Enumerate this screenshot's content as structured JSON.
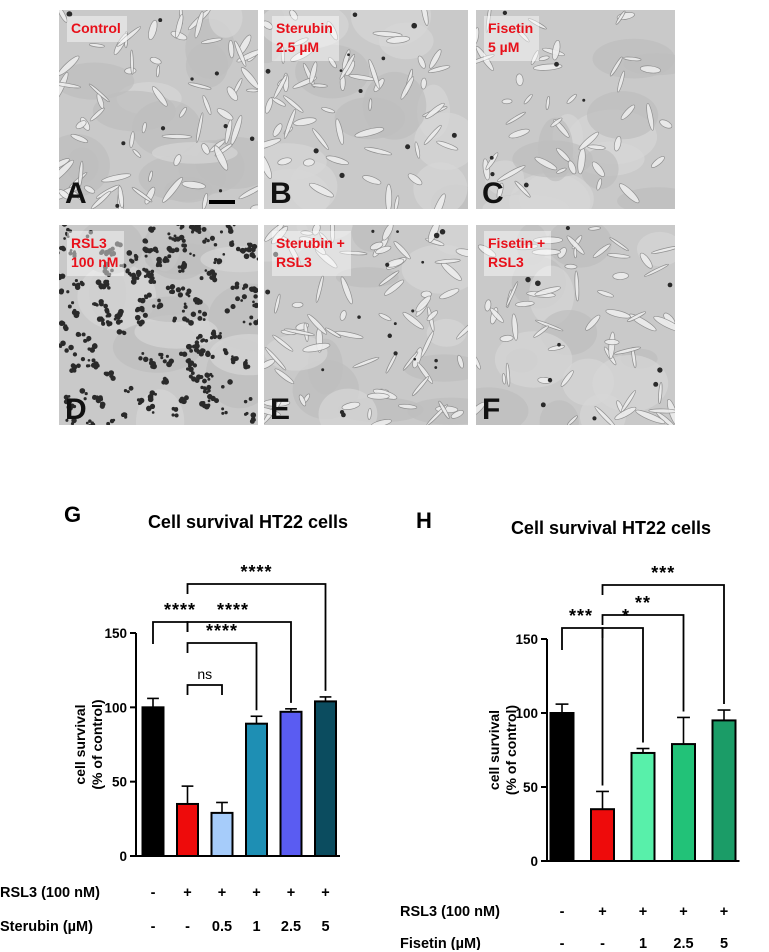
{
  "panels": [
    {
      "id": "A",
      "label": "Control",
      "letter": "A",
      "density": 0.55,
      "dead": 0.06,
      "seed": 11
    },
    {
      "id": "B",
      "label": "Sterubin\n2.5 µM",
      "letter": "B",
      "density": 0.45,
      "dead": 0.07,
      "seed": 23
    },
    {
      "id": "C",
      "label": "Fisetin\n5 µM",
      "letter": "C",
      "density": 0.35,
      "dead": 0.04,
      "seed": 37
    },
    {
      "id": "D",
      "label": "RSL3\n100 nM",
      "letter": "D",
      "density": 0.0,
      "dead": 1.0,
      "seed": 51
    },
    {
      "id": "E",
      "label": "Sterubin +\nRSL3",
      "letter": "E",
      "density": 0.6,
      "dead": 0.12,
      "seed": 67
    },
    {
      "id": "F",
      "label": "Fisetin +\nRSL3",
      "letter": "F",
      "density": 0.45,
      "dead": 0.06,
      "seed": 83
    }
  ],
  "chart_data": [
    {
      "letter": "G",
      "type": "bar",
      "title": "Cell survival HT22 cells",
      "ylabel_line1": "cell survival",
      "ylabel_line2": "(% of control)",
      "ylim": [
        0,
        150
      ],
      "yticks": [
        0,
        50,
        100,
        150
      ],
      "values": [
        100,
        35,
        29,
        89,
        97,
        104
      ],
      "errors": [
        6,
        12,
        7,
        5,
        2,
        3
      ],
      "colors": [
        "#000000",
        "#ee0b0b",
        "#a6ccfa",
        "#1e8fb4",
        "#5a5cf2",
        "#0b4c5f"
      ],
      "row_labels": [
        "RSL3 (100 nM)",
        "Sterubin (µM)"
      ],
      "row1": [
        "-",
        "+",
        "+",
        "+",
        "+",
        "+"
      ],
      "row2": [
        "-",
        "-",
        "0.5",
        "1",
        "2.5",
        "5"
      ],
      "comparisons": [
        {
          "from": 0,
          "to": 1,
          "label": "****"
        },
        {
          "from": 1,
          "to": 2,
          "label": "ns"
        },
        {
          "from": 1,
          "to": 3,
          "label": "****"
        },
        {
          "from": 1,
          "to": 4,
          "label": "****"
        },
        {
          "from": 1,
          "to": 5,
          "label": "****"
        }
      ]
    },
    {
      "letter": "H",
      "type": "bar",
      "title": "Cell survival HT22 cells",
      "ylabel_line1": "cell survival",
      "ylabel_line2": "(% of control)",
      "ylim": [
        0,
        150
      ],
      "yticks": [
        0,
        50,
        100,
        150
      ],
      "values": [
        100,
        35,
        73,
        79,
        95
      ],
      "errors": [
        6,
        12,
        3,
        18,
        7
      ],
      "colors": [
        "#000000",
        "#ee0b0b",
        "#58f0aa",
        "#22c278",
        "#1b9c67"
      ],
      "row_labels": [
        "RSL3 (100 nM)",
        "Fisetin (µM)"
      ],
      "row1": [
        "-",
        "+",
        "+",
        "+",
        "+"
      ],
      "row2": [
        "-",
        "-",
        "1",
        "2.5",
        "5"
      ],
      "comparisons": [
        {
          "from": 0,
          "to": 1,
          "label": "***"
        },
        {
          "from": 1,
          "to": 2,
          "label": "*"
        },
        {
          "from": 1,
          "to": 3,
          "label": "**"
        },
        {
          "from": 1,
          "to": 4,
          "label": "***"
        }
      ]
    }
  ]
}
